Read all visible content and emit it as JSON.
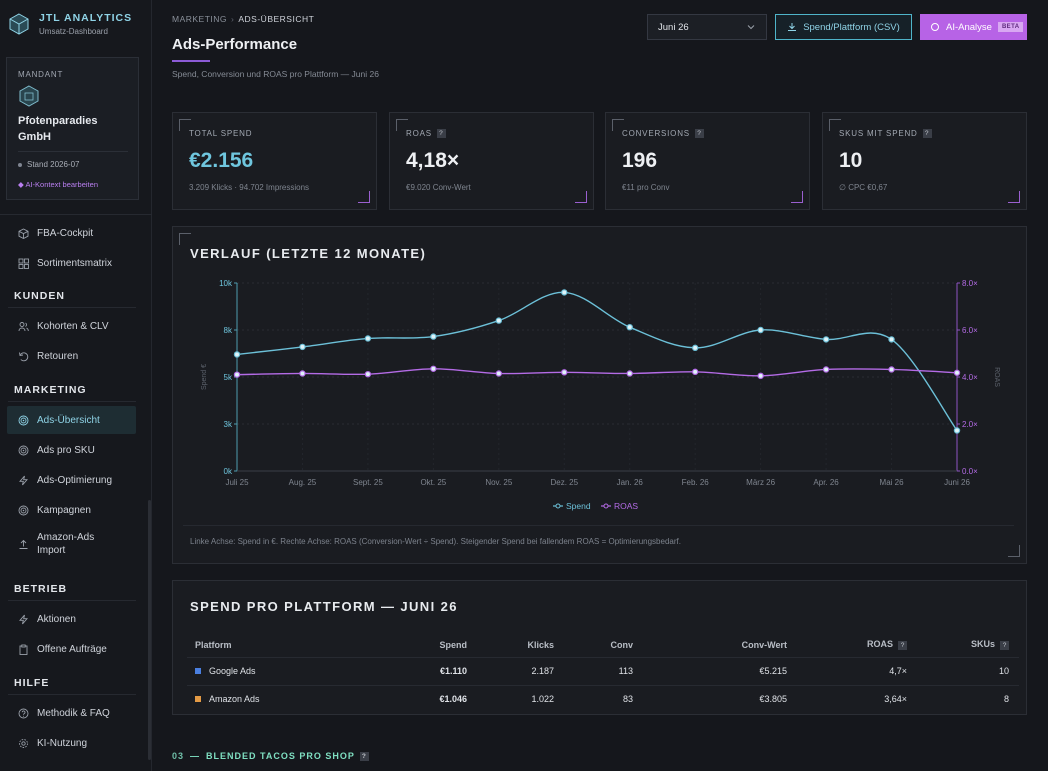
{
  "brand": {
    "title": "JTL ANALYTICS",
    "subtitle": "Umsatz-Dashboard"
  },
  "tenant": {
    "label": "MANDANT",
    "name": "Pfotenparadies GmbH",
    "stand": "Stand 2026-07",
    "ai_link": "◆ AI-Kontext bearbeiten"
  },
  "nav": {
    "top_items": [
      {
        "label": "FBA-Cockpit",
        "icon": "cube-icon"
      },
      {
        "label": "Sortimentsmatrix",
        "icon": "grid-icon"
      }
    ],
    "sections": [
      {
        "title": "KUNDEN",
        "items": [
          {
            "label": "Kohorten & CLV",
            "icon": "users-icon"
          },
          {
            "label": "Retouren",
            "icon": "undo-icon"
          }
        ]
      },
      {
        "title": "MARKETING",
        "items": [
          {
            "label": "Ads-Übersicht",
            "icon": "target-icon",
            "active": true
          },
          {
            "label": "Ads pro SKU",
            "icon": "target-icon"
          },
          {
            "label": "Ads-Optimierung",
            "icon": "bolt-icon"
          },
          {
            "label": "Kampagnen",
            "icon": "target-icon"
          },
          {
            "label": "Amazon-Ads Import",
            "icon": "upload-icon"
          }
        ]
      },
      {
        "title": "BETRIEB",
        "items": [
          {
            "label": "Aktionen",
            "icon": "bolt-icon"
          },
          {
            "label": "Offene Aufträge",
            "icon": "clipboard-icon"
          }
        ]
      },
      {
        "title": "HILFE",
        "items": [
          {
            "label": "Methodik & FAQ",
            "icon": "help-icon"
          },
          {
            "label": "KI-Nutzung",
            "icon": "gear-icon"
          }
        ]
      }
    ]
  },
  "header": {
    "breadcrumb": [
      "MARKETING",
      "ADS-ÜBERSICHT"
    ],
    "breadcrumb_sep": "›",
    "title": "Ads-Performance",
    "subtitle": "Spend, Conversion und ROAS pro Plattform — Juni 26",
    "month_select": "Juni 26",
    "csv_button": "Spend/Plattform (CSV)",
    "ai_button": "AI-Analyse",
    "ai_badge": "BETA"
  },
  "colors": {
    "accent": "#6fc6de",
    "purple": "#b763e6",
    "spend_line": "#6cc0d8",
    "roas_line": "#b46be6"
  },
  "kpis": [
    {
      "label": "TOTAL SPEND",
      "value": "€2.156",
      "sub": "3.209 Klicks · 94.702 Impressions",
      "help": false,
      "accent": true
    },
    {
      "label": "ROAS",
      "value": "4,18×",
      "sub": "€9.020 Conv-Wert",
      "help": true
    },
    {
      "label": "CONVERSIONS",
      "value": "196",
      "sub": "€11 pro Conv",
      "help": true
    },
    {
      "label": "SKUS MIT SPEND",
      "value": "10",
      "sub": "∅ CPC €0,67",
      "help": true
    }
  ],
  "help_glyph": "?",
  "chart": {
    "title": "VERLAUF (LETZTE 12 MONATE)",
    "note": "Linke Achse: Spend in €. Rechte Achse: ROAS (Conversion-Wert ÷ Spend). Steigender Spend bei fallendem ROAS = Optimierungsbedarf."
  },
  "chart_data": {
    "type": "line",
    "categories": [
      "Juli 25",
      "Aug. 25",
      "Sept. 25",
      "Okt. 25",
      "Nov. 25",
      "Dez. 25",
      "Jan. 26",
      "Feb. 26",
      "März 26",
      "Apr. 26",
      "Mai 26",
      "Juni 26"
    ],
    "series": [
      {
        "name": "Spend",
        "axis": "left",
        "color": "#6cc0d8",
        "values": [
          6200,
          6600,
          7050,
          7150,
          8000,
          9500,
          7650,
          6550,
          7500,
          7000,
          7000,
          2156
        ]
      },
      {
        "name": "ROAS",
        "axis": "right",
        "color": "#b46be6",
        "values": [
          4.1,
          4.15,
          4.12,
          4.35,
          4.15,
          4.2,
          4.15,
          4.22,
          4.05,
          4.32,
          4.32,
          4.18
        ]
      }
    ],
    "ylabel_left": "Spend €",
    "ylabel_right": "ROAS",
    "ylim_left": [
      0,
      10000
    ],
    "ylim_right": [
      0,
      8
    ],
    "yticks_left": [
      "0k",
      "3k",
      "5k",
      "8k",
      "10k"
    ],
    "yticks_right": [
      "0.0×",
      "2.0×",
      "4.0×",
      "6.0×",
      "8.0×"
    ],
    "legend_position": "bottom-center",
    "grid": true
  },
  "platform_table": {
    "title": "SPEND PRO PLATTFORM — JUNI 26",
    "columns": [
      "Platform",
      "Spend",
      "Klicks",
      "Conv",
      "Conv-Wert",
      "ROAS",
      "SKUs"
    ],
    "rows": [
      {
        "platform": "Google Ads",
        "color": "#4a7fe0",
        "spend": "€1.110",
        "klicks": "2.187",
        "conv": "113",
        "conv_wert": "€5.215",
        "roas": "4,7×",
        "skus": "10"
      },
      {
        "platform": "Amazon Ads",
        "color": "#e39a45",
        "spend": "€1.046",
        "klicks": "1.022",
        "conv": "83",
        "conv_wert": "€3.805",
        "roas": "3,64×",
        "skus": "8"
      }
    ]
  },
  "section3": {
    "number": "03",
    "dash": "—",
    "title": "BLENDED TACOS PRO SHOP"
  }
}
